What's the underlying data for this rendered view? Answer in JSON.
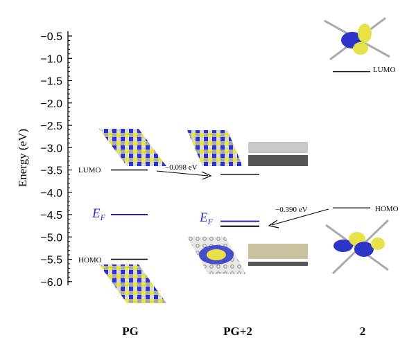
{
  "axis": {
    "title": "Energy (eV)",
    "ticks": [
      "−0.5",
      "−1.0",
      "−1.5",
      "−2.0",
      "−2.5",
      "−3.0",
      "−3.5",
      "−4.0",
      "−4.5",
      "−5.0",
      "−5.5",
      "−6.0"
    ]
  },
  "columns": {
    "pg": "PG",
    "pg2": "PG+2",
    "mol": "2"
  },
  "labels": {
    "lumo": "LUMO",
    "homo": "HOMO",
    "ef_main": "E",
    "ef_sub": "F"
  },
  "arrows": {
    "lumo_shift": "−0.098 eV",
    "homo_shift": "−0.390 eV"
  },
  "levels": {
    "pg_lumo": -3.5,
    "pg_ef": -4.5,
    "pg_homo": -5.5,
    "pg2_lumo": -3.6,
    "pg2_ef": -4.65,
    "pg2_ef2": -4.76,
    "mol_lumo": -1.3,
    "mol_homo": -4.35
  },
  "colors": {
    "fermi": "#2222cc",
    "orbital_yellow": "#e6e34a",
    "orbital_blue": "#2d35c9",
    "carbon": "#9a9a9a"
  }
}
